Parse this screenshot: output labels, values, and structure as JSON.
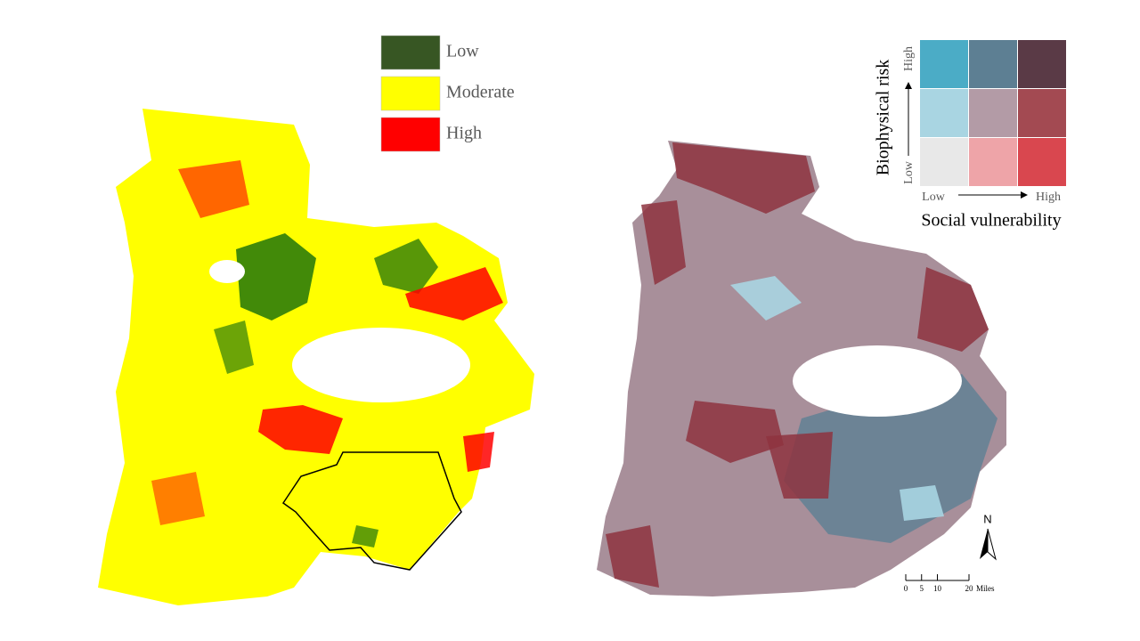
{
  "risk_legend": {
    "items": [
      {
        "label": "Low",
        "color": "#375623"
      },
      {
        "label": "Moderate",
        "color": "#ffff00"
      },
      {
        "label": "High",
        "color": "#ff0000"
      }
    ]
  },
  "bivariate_legend": {
    "y_title": "Biophysical risk",
    "y_high": "High",
    "y_low": "Low",
    "x_low": "Low",
    "x_high": "High",
    "x_title": "Social vulnerability",
    "colors": [
      [
        "#4bacc6",
        "#5d7f93",
        "#5a3a46"
      ],
      [
        "#a9d5e2",
        "#b39ba6",
        "#a34a52"
      ],
      [
        "#e8e8e8",
        "#eea4a8",
        "#d9474f"
      ]
    ]
  },
  "north_arrow": "N",
  "scale_bar": {
    "ticks": [
      0,
      5,
      10,
      20
    ],
    "unit": "Miles"
  }
}
